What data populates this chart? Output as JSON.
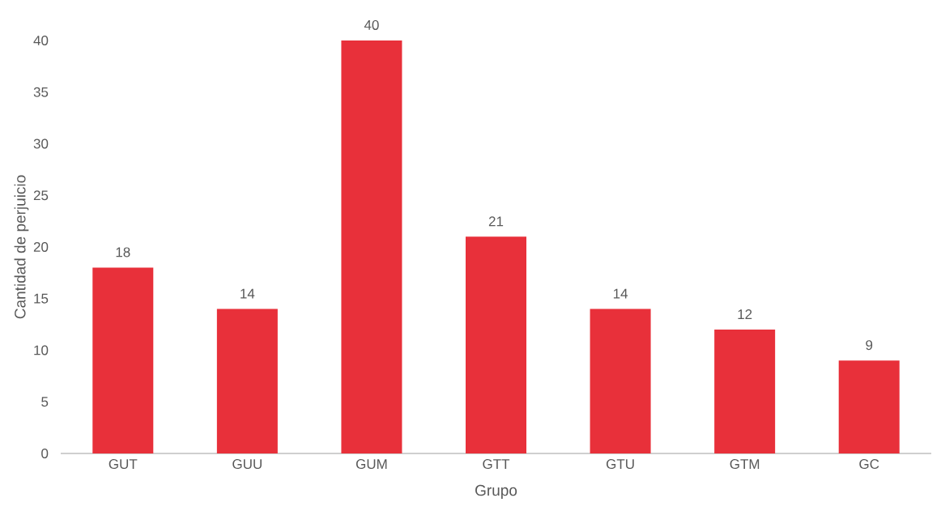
{
  "chart_data": {
    "type": "bar",
    "xlabel": "Grupo",
    "ylabel": "Cantidad de perjuicio",
    "categories": [
      "GUT",
      "GUU",
      "GUM",
      "GTT",
      "GTU",
      "GTM",
      "GC"
    ],
    "values": [
      18,
      14,
      40,
      21,
      14,
      12,
      9
    ],
    "colors": [
      "#e8303a",
      "#e8303a",
      "#e8303a",
      "#e8303a",
      "#e8303a",
      "#e8303a",
      "#e8303a"
    ],
    "ylim": [
      0,
      40
    ],
    "yticks": [
      0,
      5,
      10,
      15,
      20,
      25,
      30,
      35,
      40
    ],
    "data_labels": true
  }
}
